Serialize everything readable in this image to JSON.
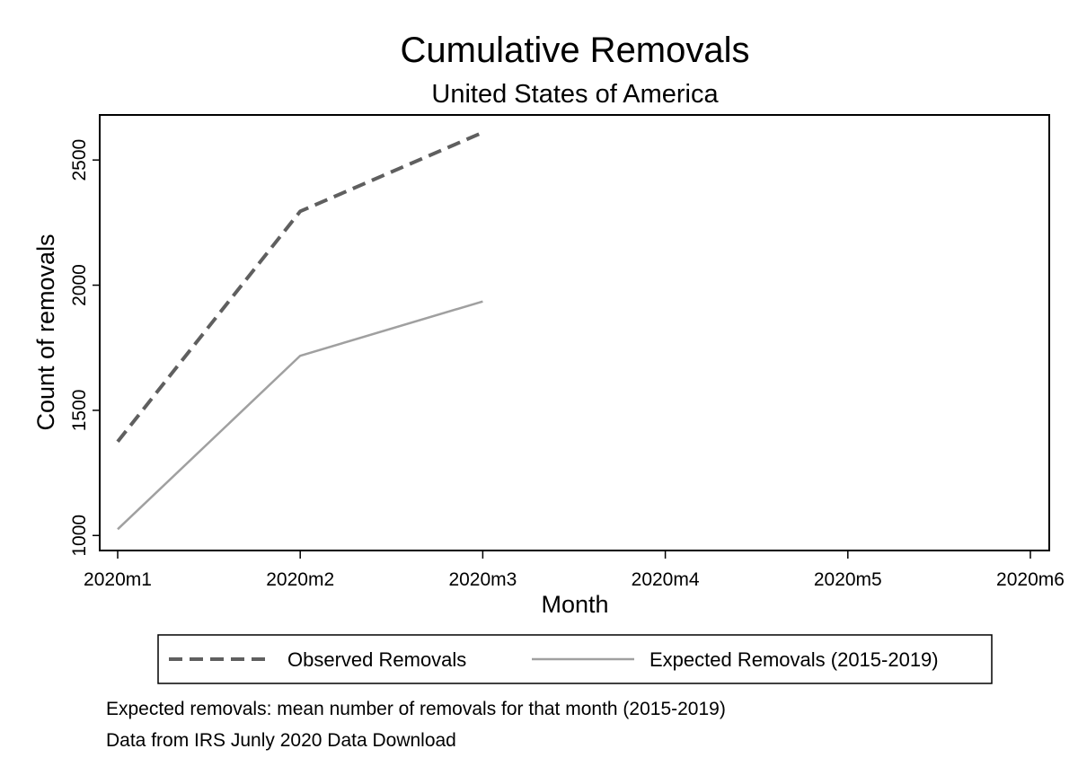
{
  "chart_data": {
    "type": "line",
    "title": "Cumulative Removals",
    "subtitle": "United States of America",
    "xlabel": "Month",
    "ylabel": "Count of removals",
    "categories": [
      "2020m1",
      "2020m2",
      "2020m3",
      "2020m4",
      "2020m5",
      "2020m6"
    ],
    "yticks": [
      1000,
      1500,
      2000,
      2500
    ],
    "ylim": [
      940,
      2680
    ],
    "grid": false,
    "legend_position": "bottom",
    "series": [
      {
        "name": "Observed Removals",
        "style": "dashed",
        "color": "#5f5f5f",
        "values": [
          1375,
          2295,
          2610,
          null,
          null,
          null
        ]
      },
      {
        "name": "Expected Removals (2015-2019)",
        "style": "solid",
        "color": "#a0a0a0",
        "values": [
          1025,
          1718,
          1935,
          null,
          null,
          null
        ]
      }
    ],
    "notes": [
      "Expected removals: mean number of removals for that month (2015-2019)",
      "Data from IRS Junly 2020 Data Download"
    ]
  }
}
